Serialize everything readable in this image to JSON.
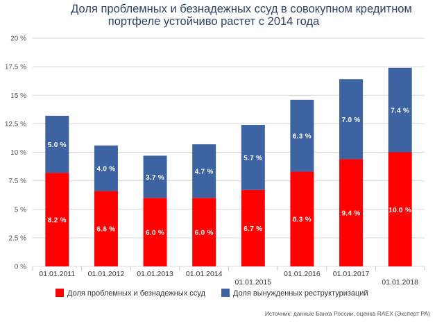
{
  "chart_data": {
    "type": "bar",
    "stacked": true,
    "title_lines": [
      "Доля проблемных и безнадежных ссуд в совокупном кредитном",
      "портфеле устойчиво растет с 2014 года"
    ],
    "categories": [
      "01.01.2011",
      "01.01.2012",
      "01.01.2013",
      "01.01.2014",
      "01.01.2015",
      "01.01.2016",
      "01.01.2017",
      "01.01.2018"
    ],
    "series": [
      {
        "name": "Доля проблемных и безнадежных ссуд",
        "color": "#ff0000",
        "values": [
          8.2,
          6.6,
          6.0,
          6.0,
          6.7,
          8.3,
          9.4,
          10.0
        ],
        "labels": [
          "8.2 %",
          "6.6 %",
          "6.0 %",
          "6.0 %",
          "6.7 %",
          "8.3 %",
          "9.4 %",
          "10.0 %"
        ]
      },
      {
        "name": "Доля вынужденных реструктуризаций",
        "color": "#3d63a3",
        "values": [
          5.0,
          4.0,
          3.7,
          4.7,
          5.7,
          6.3,
          7.0,
          7.4
        ],
        "labels": [
          "5.0 %",
          "4.0 %",
          "3.7 %",
          "4.7 %",
          "5.7 %",
          "6.3 %",
          "7.0 %",
          "7.4 %"
        ]
      }
    ],
    "ylim": [
      0,
      20
    ],
    "yticks": [
      0,
      2.5,
      5,
      7.5,
      10,
      12.5,
      15,
      17.5,
      20
    ],
    "ytick_labels": [
      "0 %",
      "2.5 %",
      "5 %",
      "7.5 %",
      "10 %",
      "12.5 %",
      "15 %",
      "17.5 %",
      "20 %"
    ],
    "grid": true,
    "legend_position": "bottom",
    "source": "Источник: данные Банка России, оценка RAEX (Эксперт РА)"
  }
}
